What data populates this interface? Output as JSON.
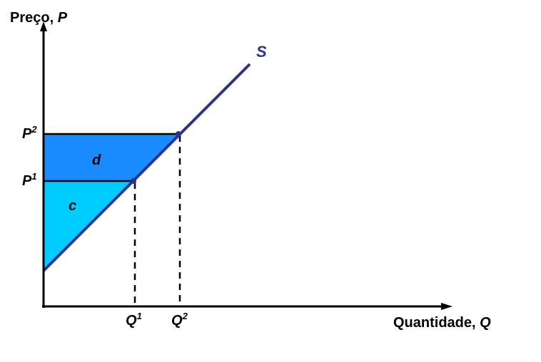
{
  "axes": {
    "y_label": "Preço,",
    "y_symbol": "P",
    "x_label": "Quantidade,",
    "x_symbol": "Q"
  },
  "curve": {
    "name": "S",
    "color": "#2e3192"
  },
  "prices": {
    "p1_letter": "P",
    "p1_sup": "1",
    "p2_letter": "P",
    "p2_sup": "2"
  },
  "quantities": {
    "q1_letter": "Q",
    "q1_sup": "1",
    "q2_letter": "Q",
    "q2_sup": "2"
  },
  "areas": {
    "d": {
      "label": "d",
      "color": "#1a8cff"
    },
    "c": {
      "label": "c",
      "color": "#00ccff"
    }
  },
  "colors": {
    "axis": "#000000",
    "point": "#2e3192"
  }
}
